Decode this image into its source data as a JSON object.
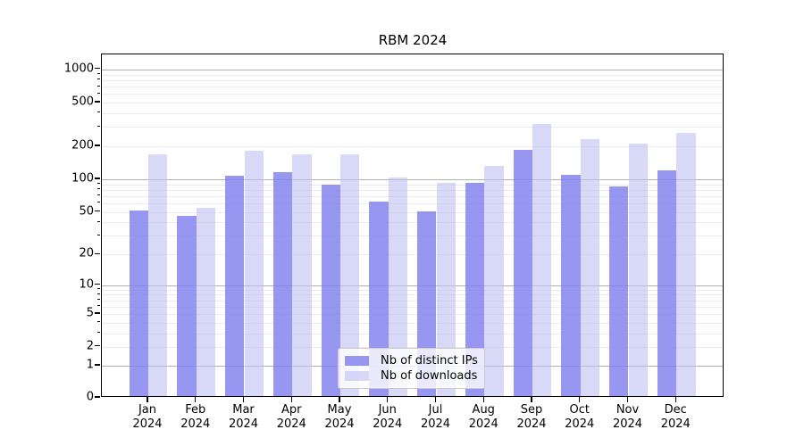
{
  "chart_data": {
    "type": "bar",
    "title": "RBM 2024",
    "x_tick_year": "2024",
    "categories": [
      "Jan",
      "Feb",
      "Mar",
      "Apr",
      "May",
      "Jun",
      "Jul",
      "Aug",
      "Sep",
      "Oct",
      "Nov",
      "Dec"
    ],
    "series": [
      {
        "name": "Nb of distinct IPs",
        "color": "#8080ee",
        "values": [
          50,
          44,
          104,
          111,
          86,
          60,
          49,
          90,
          178,
          105,
          83,
          117
        ]
      },
      {
        "name": "Nb of downloads",
        "color": "#c0c0f2",
        "values": [
          162,
          53,
          175,
          162,
          164,
          100,
          89,
          128,
          310,
          225,
          204,
          254
        ]
      }
    ],
    "y_ticks": [
      0,
      1,
      2,
      5,
      10,
      20,
      50,
      100,
      200,
      500,
      1000
    ],
    "y_scale": "symlog",
    "ylim": [
      0,
      1300
    ],
    "grid": true,
    "legend_position": "lower center",
    "colors": {
      "major_grid": "#b1b1b1",
      "minor_grid": "#ebebeb",
      "axis": "#000000"
    }
  }
}
